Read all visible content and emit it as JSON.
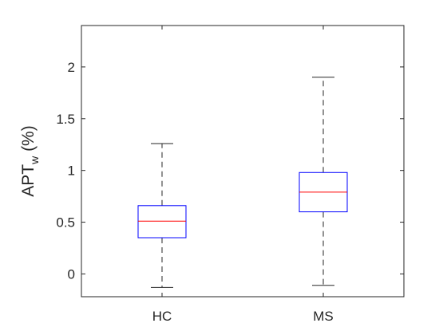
{
  "chart_data": {
    "type": "box",
    "categories": [
      "HC",
      "MS"
    ],
    "ylabel": {
      "main": "APT",
      "sub": "w",
      "unit": " (%)"
    },
    "ylim": [
      -0.22,
      2.4
    ],
    "yticks": [
      0,
      0.5,
      1,
      1.5,
      2
    ],
    "ytick_labels": [
      "0",
      "0.5",
      "1",
      "1.5",
      "2"
    ],
    "grid": false,
    "boxes": [
      {
        "category": "HC",
        "whisker_low": -0.13,
        "q1": 0.35,
        "median": 0.51,
        "q3": 0.66,
        "whisker_high": 1.26
      },
      {
        "category": "MS",
        "whisker_low": -0.11,
        "q1": 0.6,
        "median": 0.79,
        "q3": 0.98,
        "whisker_high": 1.9
      }
    ],
    "colors": {
      "box": "#0000ff",
      "median": "#ff0000",
      "whisker": "#262626",
      "axis": "#262626"
    }
  }
}
